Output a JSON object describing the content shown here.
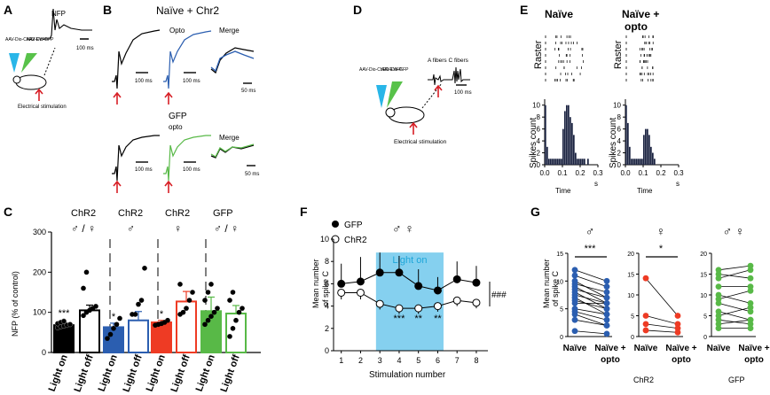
{
  "panels": {
    "A": {
      "letter": "A",
      "virus_blue": "AAV-Dio-ChR2-EYFP",
      "virus_green": "AAV-Dio-GFP",
      "nfp_label": "NFP",
      "scale": "100 ms",
      "stimulation": "Electrical stimulation"
    },
    "B": {
      "letter": "B",
      "title_top": "Naïve + Chr2",
      "opto": "Opto",
      "merge_top": "Merge",
      "gfp": "GFP",
      "gfp_opto": "opto",
      "merge_bottom": "Merge",
      "scale_100": "100 ms",
      "scale_50": "50 ms"
    },
    "C": {
      "letter": "C",
      "groups": [
        "ChR2",
        "ChR2",
        "ChR2",
        "GFP"
      ],
      "sexes": [
        "♂ / ♀",
        "♂",
        "♀",
        "♂ / ♀"
      ],
      "ylabel": "NFP (% of control)",
      "yticks": [
        "0",
        "100",
        "200",
        "300"
      ],
      "bar_labels": [
        "Light on",
        "Light off",
        "Light on",
        "Light off",
        "Light on",
        "Light off",
        "Light on",
        "Light off"
      ],
      "stars": [
        "***",
        "*",
        "*"
      ]
    },
    "D": {
      "letter": "D",
      "virus_blue": "AAV-Dio-ChR2-EYFP",
      "virus_green": "AAV-Dio-GFP",
      "fibers": "A fibers  C fibers",
      "scale": "100 ms",
      "stimulation": "Electrical stimulation"
    },
    "E": {
      "letter": "E",
      "title_left": "Naïve",
      "title_right_1": "Naïve +",
      "title_right_2": "opto",
      "raster": "Raster",
      "ylabel": "Spikes count",
      "xlabel": "Time",
      "unit": "s",
      "yticks": [
        "0",
        "2",
        "4",
        "6",
        "8",
        "10"
      ],
      "xticks": [
        "0.0",
        "0.1",
        "0.2",
        "0.3"
      ]
    },
    "F": {
      "letter": "F",
      "legend_gfp": "GFP",
      "legend_chr2": "ChR2",
      "sex": "♂ ♀",
      "light_on": "Light on",
      "ylabel_1": "Mean number",
      "ylabel_2": "of spike C",
      "xlabel": "Stimulation number",
      "yticks": [
        "0",
        "2",
        "4",
        "6",
        "8",
        "10"
      ],
      "xticks": [
        "1",
        "2",
        "3",
        "4",
        "5",
        "6",
        "7",
        "8"
      ],
      "stars": [
        "***",
        "**",
        "**"
      ],
      "hash": "###"
    },
    "G": {
      "letter": "G",
      "ylabel_1": "Mean number",
      "ylabel_2": "of spike C",
      "sexes": [
        "♂",
        "♀",
        "♂ ♀"
      ],
      "stars": [
        "***",
        "*"
      ],
      "cond_naive": "Naïve",
      "cond_opto_1": "Naïve +",
      "cond_opto_2": "opto",
      "group_chr2": "ChR2",
      "group_gfp": "GFP",
      "yticks_15": [
        "0",
        "5",
        "10",
        "15"
      ],
      "yticks_20": [
        "0",
        "5",
        "10",
        "15",
        "20"
      ]
    }
  },
  "chart_data": [
    {
      "id": "C",
      "type": "bar",
      "ylabel": "NFP (% of control)",
      "ylim": [
        0,
        300
      ],
      "categories": [
        "Light on",
        "Light off",
        "Light on",
        "Light off",
        "Light on",
        "Light off",
        "Light on",
        "Light off"
      ],
      "groups": [
        "ChR2 ♂/♀",
        "ChR2 ♂/♀",
        "ChR2 ♂",
        "ChR2 ♂",
        "ChR2 ♀",
        "ChR2 ♀",
        "GFP ♂/♀",
        "GFP ♂/♀"
      ],
      "values": [
        68,
        105,
        63,
        80,
        75,
        127,
        103,
        97
      ],
      "errors": [
        6,
        13,
        10,
        22,
        5,
        25,
        35,
        20
      ],
      "fill": [
        "#000000",
        "#ffffff",
        "#2b5eb0",
        "#ffffff",
        "#ee3b24",
        "#ffffff",
        "#58b947",
        "#ffffff"
      ],
      "stroke": [
        "#000000",
        "#000000",
        "#2b5eb0",
        "#2b5eb0",
        "#ee3b24",
        "#ee3b24",
        "#58b947",
        "#58b947"
      ],
      "points": [
        [
          62,
          65,
          66,
          68,
          70,
          72,
          75,
          78
        ],
        [
          92,
          100,
          105,
          110,
          115,
          160,
          200
        ],
        [
          35,
          45,
          60,
          70,
          85
        ],
        [
          95,
          95,
          120,
          130,
          210
        ],
        [
          68,
          70,
          72,
          75,
          80
        ],
        [
          95,
          100,
          110,
          130,
          150,
          170
        ],
        [
          70,
          80,
          90,
          100,
          110,
          130,
          150,
          170
        ],
        [
          40,
          60,
          80,
          100,
          110,
          130,
          150
        ]
      ]
    },
    {
      "id": "E-naive",
      "type": "bar",
      "xlabel": "Time",
      "ylabel": "Spikes count",
      "xlim": [
        0,
        0.3
      ],
      "ylim": [
        0,
        11
      ],
      "bin_centers": [
        0.005,
        0.015,
        0.025,
        0.035,
        0.045,
        0.055,
        0.065,
        0.075,
        0.085,
        0.095,
        0.105,
        0.115,
        0.125,
        0.135,
        0.145,
        0.155,
        0.165,
        0.175,
        0.185,
        0.195,
        0.205,
        0.215,
        0.225,
        0.235,
        0.245
      ],
      "values": [
        10,
        3,
        1,
        1,
        1,
        1,
        1,
        1,
        1,
        1,
        6,
        9,
        10,
        10,
        8,
        7,
        5,
        2,
        1,
        1,
        1,
        1,
        1,
        0,
        1
      ]
    },
    {
      "id": "E-opto",
      "type": "bar",
      "xlabel": "Time",
      "ylabel": "Spikes count",
      "xlim": [
        0,
        0.3
      ],
      "ylim": [
        0,
        11
      ],
      "bin_centers": [
        0.005,
        0.015,
        0.025,
        0.035,
        0.045,
        0.055,
        0.065,
        0.075,
        0.085,
        0.095,
        0.105,
        0.115,
        0.125,
        0.135,
        0.145,
        0.155,
        0.165
      ],
      "values": [
        10,
        7,
        3,
        1,
        1,
        1,
        1,
        1,
        1,
        1,
        5,
        6,
        6,
        5,
        3,
        2,
        1
      ]
    },
    {
      "id": "F",
      "type": "line",
      "xlabel": "Stimulation number",
      "ylabel": "Mean number of spike C",
      "x": [
        1,
        2,
        3,
        4,
        5,
        6,
        7,
        8
      ],
      "ylim": [
        0,
        10
      ],
      "shaded_range": [
        2.8,
        6.3
      ],
      "series": [
        {
          "name": "GFP",
          "values": [
            6.0,
            6.2,
            7.0,
            7.0,
            5.8,
            5.4,
            6.4,
            6.1
          ],
          "errors": [
            1.8,
            2.2,
            1.8,
            1.5,
            1.5,
            1.2,
            1.6,
            1.5
          ],
          "filled": true
        },
        {
          "name": "ChR2",
          "values": [
            5.2,
            5.2,
            4.2,
            3.8,
            3.8,
            4.0,
            4.5,
            4.3
          ],
          "errors": [
            0.6,
            0.6,
            0.5,
            0.5,
            0.5,
            0.5,
            0.5,
            0.5
          ],
          "filled": false
        }
      ]
    },
    {
      "id": "G",
      "type": "line",
      "categories": [
        "Naïve",
        "Naïve + opto"
      ],
      "panels": [
        {
          "sex": "♂",
          "ylim": [
            0,
            15
          ],
          "color": "#2b5eb0",
          "pairs": [
            [
              12,
              10
            ],
            [
              11,
              9
            ],
            [
              10,
              7
            ],
            [
              9.5,
              8
            ],
            [
              9,
              6
            ],
            [
              8.5,
              7
            ],
            [
              8,
              5
            ],
            [
              7.5,
              6
            ],
            [
              7,
              4
            ],
            [
              6.5,
              5
            ],
            [
              6,
              6
            ],
            [
              5,
              4
            ],
            [
              4.5,
              3
            ],
            [
              4,
              2
            ],
            [
              3,
              2
            ],
            [
              1,
              0.5
            ]
          ]
        },
        {
          "sex": "♀",
          "ylim": [
            0,
            20
          ],
          "color": "#ee3b24",
          "pairs": [
            [
              14,
              5
            ],
            [
              5,
              3
            ],
            [
              3,
              2
            ],
            [
              1.5,
              1
            ]
          ]
        },
        {
          "sex": "♂ ♀",
          "ylim": [
            0,
            20
          ],
          "color": "#58b947",
          "pairs": [
            [
              16,
              17
            ],
            [
              15,
              14
            ],
            [
              14,
              16
            ],
            [
              12,
              12
            ],
            [
              10,
              8
            ],
            [
              9,
              11
            ],
            [
              8,
              6
            ],
            [
              6,
              4
            ],
            [
              5,
              7
            ],
            [
              4,
              3
            ],
            [
              3,
              4
            ],
            [
              2,
              2
            ]
          ]
        }
      ]
    }
  ]
}
